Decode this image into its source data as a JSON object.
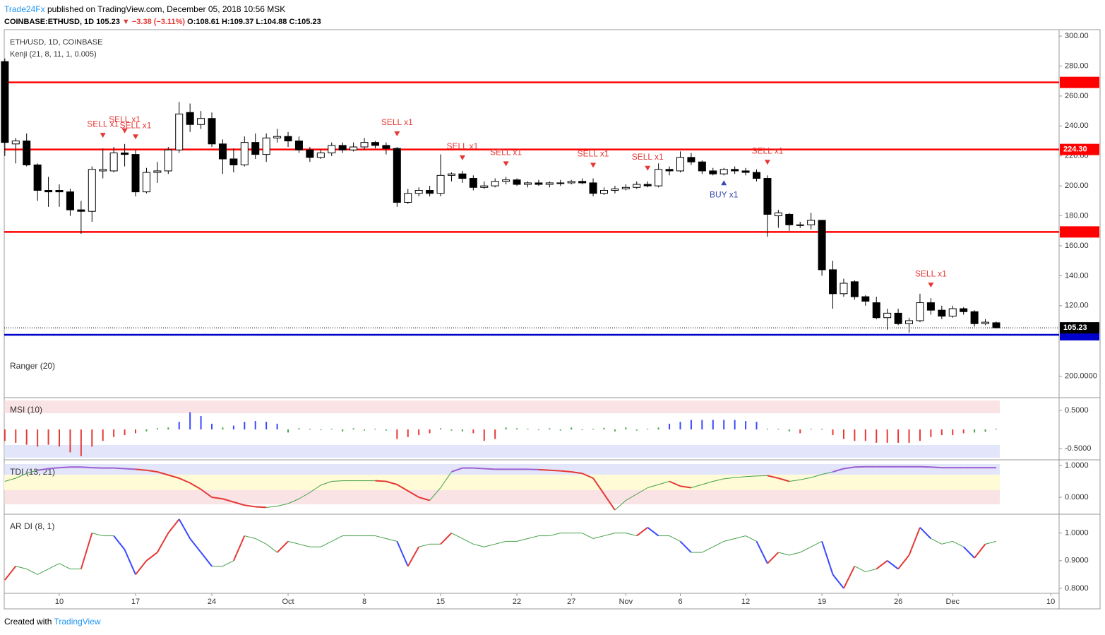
{
  "header": {
    "author": "Trade24Fx",
    "published": "published on TradingView.com, December 05, 2018 10:56 MSK",
    "symbol": "COINBASE:ETHUSD, 1D",
    "last": "105.23",
    "change": "▼ −3.38 (−3.11%)",
    "ohlc": "O:108.61 H:109.37 L:104.88 C:105.23"
  },
  "footer": {
    "created": "Created with",
    "brand": "TradingView"
  },
  "chart_data": {
    "type": "candlestick",
    "title": "ETH/USD, 1D, COINBASE",
    "subtitle": "Kenji (21, 8, 11, 1, 0.005)",
    "xlim": [
      -0.055,
      96.77
    ],
    "xticks": [
      {
        "value": 5,
        "label": "10"
      },
      {
        "value": 12,
        "label": "17"
      },
      {
        "value": 19,
        "label": "24"
      },
      {
        "value": 26,
        "label": "Oct"
      },
      {
        "value": 33,
        "label": "8"
      },
      {
        "value": 40,
        "label": "15"
      },
      {
        "value": 47,
        "label": "22"
      },
      {
        "value": 52,
        "label": "27"
      },
      {
        "value": 57,
        "label": "Nov"
      },
      {
        "value": 62,
        "label": "6"
      },
      {
        "value": 68,
        "label": "12"
      },
      {
        "value": 75,
        "label": "19"
      },
      {
        "value": 82,
        "label": "26"
      },
      {
        "value": 87,
        "label": "Dec"
      },
      {
        "value": 96,
        "label": "10"
      }
    ],
    "ylim": [
      88.3,
      304.3
    ],
    "yticks": [
      {
        "value": 120,
        "label": "120.00"
      },
      {
        "value": 140,
        "label": "140.00"
      },
      {
        "value": 160,
        "label": "160.00"
      },
      {
        "value": 180,
        "label": "180.00"
      },
      {
        "value": 200,
        "label": "200.00"
      },
      {
        "value": 220,
        "label": "220.00"
      },
      {
        "value": 240,
        "label": "240.00"
      },
      {
        "value": 260,
        "label": "260.00"
      },
      {
        "value": 280,
        "label": "280.00"
      },
      {
        "value": 300,
        "label": "300.00"
      }
    ],
    "levels": [
      {
        "value": 269.09,
        "color": "#ff0000"
      },
      {
        "value": 224.3,
        "label": "224.30",
        "color": "#ff0000"
      },
      {
        "value": 169.25,
        "color": "#ff0000"
      },
      {
        "value": 100.58,
        "color": "#0000cc"
      }
    ],
    "last_price": 105.23,
    "up_color": "#ffffff",
    "down_color": "#000000",
    "ohlc": [
      [
        283,
        285,
        220,
        229
      ],
      [
        228,
        232,
        215,
        230
      ],
      [
        230,
        235,
        213,
        214
      ],
      [
        214,
        215,
        190,
        197
      ],
      [
        197,
        206,
        186,
        196
      ],
      [
        197,
        201,
        186,
        196
      ],
      [
        196,
        198,
        180,
        184
      ],
      [
        184,
        190,
        168,
        183
      ],
      [
        183,
        213,
        176,
        211
      ],
      [
        210,
        225,
        205,
        211
      ],
      [
        210,
        226,
        209,
        222
      ],
      [
        222,
        228,
        213,
        221
      ],
      [
        221,
        224,
        193,
        196
      ],
      [
        196,
        212,
        195,
        209
      ],
      [
        209,
        216,
        202,
        210
      ],
      [
        210,
        226,
        208,
        224
      ],
      [
        224,
        256,
        222,
        248
      ],
      [
        249,
        255,
        236,
        241
      ],
      [
        241,
        250,
        238,
        245
      ],
      [
        245,
        249,
        226,
        228
      ],
      [
        228,
        231,
        208,
        218
      ],
      [
        218,
        225,
        209,
        214
      ],
      [
        214,
        233,
        213,
        229
      ],
      [
        229,
        235,
        218,
        221
      ],
      [
        221,
        235,
        216,
        232
      ],
      [
        232,
        238,
        229,
        233
      ],
      [
        233,
        236,
        226,
        230
      ],
      [
        230,
        233,
        222,
        224
      ],
      [
        224,
        226,
        216,
        219
      ],
      [
        219,
        224,
        218,
        222
      ],
      [
        222,
        229,
        220,
        227
      ],
      [
        227,
        229,
        222,
        224
      ],
      [
        224,
        229,
        223,
        226
      ],
      [
        226,
        232,
        224,
        229
      ],
      [
        229,
        230,
        225,
        227
      ],
      [
        227,
        229,
        221,
        225
      ],
      [
        225,
        226,
        186,
        189
      ],
      [
        189,
        198,
        188,
        195
      ],
      [
        195,
        199,
        193,
        197
      ],
      [
        197,
        200,
        193,
        195
      ],
      [
        195,
        221,
        193,
        207
      ],
      [
        207,
        209,
        203,
        208
      ],
      [
        208,
        210,
        202,
        205
      ],
      [
        205,
        207,
        197,
        199
      ],
      [
        199,
        203,
        198,
        200
      ],
      [
        200,
        205,
        199,
        203
      ],
      [
        203,
        206,
        201,
        204
      ],
      [
        204,
        205,
        200,
        201
      ],
      [
        201,
        203,
        199,
        202
      ],
      [
        202,
        204,
        200,
        201
      ],
      [
        201,
        203,
        199,
        202
      ],
      [
        202,
        204,
        200,
        202
      ],
      [
        202,
        204,
        201,
        203
      ],
      [
        203,
        205,
        201,
        202
      ],
      [
        202,
        205,
        193,
        195
      ],
      [
        195,
        199,
        194,
        197
      ],
      [
        197,
        200,
        195,
        198
      ],
      [
        198,
        201,
        197,
        199
      ],
      [
        199,
        203,
        198,
        201
      ],
      [
        201,
        203,
        199,
        200
      ],
      [
        200,
        215,
        199,
        211
      ],
      [
        211,
        213,
        207,
        210
      ],
      [
        210,
        223,
        209,
        219
      ],
      [
        219,
        222,
        214,
        216
      ],
      [
        216,
        217,
        208,
        210
      ],
      [
        210,
        212,
        207,
        208
      ],
      [
        208,
        212,
        207,
        211
      ],
      [
        211,
        213,
        208,
        210
      ],
      [
        210,
        212,
        207,
        209
      ],
      [
        209,
        211,
        203,
        205
      ],
      [
        205,
        207,
        166,
        181
      ],
      [
        180,
        184,
        172,
        182
      ],
      [
        181,
        182,
        170,
        174
      ],
      [
        174,
        176,
        172,
        174
      ],
      [
        174,
        182,
        171,
        177
      ],
      [
        177,
        177,
        140,
        144
      ],
      [
        144,
        150,
        118,
        128
      ],
      [
        128,
        138,
        126,
        135
      ],
      [
        136,
        137,
        124,
        126
      ],
      [
        126,
        127,
        120,
        123
      ],
      [
        122,
        126,
        111,
        112
      ],
      [
        112,
        118,
        104,
        115
      ],
      [
        115,
        118,
        107,
        108
      ],
      [
        108,
        112,
        102,
        110
      ],
      [
        110,
        128,
        109,
        122
      ],
      [
        122,
        125,
        114,
        117
      ],
      [
        117,
        120,
        111,
        113
      ],
      [
        113,
        120,
        112,
        118
      ],
      [
        118,
        119,
        114,
        116
      ],
      [
        116,
        117,
        106,
        108
      ],
      [
        108,
        111,
        107,
        109
      ],
      [
        108.61,
        109.37,
        104.88,
        105.23
      ]
    ],
    "signals": [
      {
        "label": "SELL x1",
        "index": 9,
        "side": "sell"
      },
      {
        "label": "SELL x1",
        "index": 11,
        "side": "sell"
      },
      {
        "label": "SELL x1",
        "index": 12,
        "side": "sell"
      },
      {
        "label": "SELL x1",
        "index": 36,
        "side": "sell"
      },
      {
        "label": "SELL x1",
        "index": 42,
        "side": "sell"
      },
      {
        "label": "SELL x1",
        "index": 46,
        "side": "sell"
      },
      {
        "label": "SELL x1",
        "index": 54,
        "side": "sell"
      },
      {
        "label": "SELL x1",
        "index": 59,
        "side": "sell"
      },
      {
        "label": "SELL x1",
        "index": 70,
        "side": "sell"
      },
      {
        "label": "SELL x1",
        "index": 85,
        "side": "sell"
      },
      {
        "label": "BUY x1",
        "index": 66,
        "side": "buy"
      }
    ],
    "panes": [
      {
        "name": "Ranger (20)",
        "ylim": [
          171,
          229
        ],
        "yticks": [
          {
            "value": 200,
            "label": "200.0000"
          }
        ]
      },
      {
        "name": "MSI (10)",
        "type": "bars",
        "ylim": [
          -0.778,
          0.796
        ],
        "yticks": [
          {
            "value": 0.5,
            "label": "0.5000"
          },
          {
            "value": -0.5,
            "label": "-0.5000"
          }
        ],
        "values": [
          -0.3,
          -0.35,
          -0.4,
          -0.45,
          -0.4,
          -0.45,
          -0.6,
          -0.7,
          -0.45,
          -0.3,
          -0.2,
          -0.15,
          -0.1,
          -0.05,
          0.03,
          0.05,
          0.2,
          0.45,
          0.35,
          0.15,
          0.05,
          0.1,
          0.2,
          0.22,
          0.2,
          0.15,
          -0.08,
          0.03,
          0.02,
          -0.02,
          0.02,
          -0.05,
          0.03,
          -0.03,
          0.02,
          -0.03,
          -0.25,
          -0.2,
          -0.15,
          -0.1,
          0.03,
          -0.03,
          -0.05,
          -0.1,
          -0.3,
          -0.25,
          0.05,
          0.03,
          0.02,
          -0.02,
          0.03,
          -0.03,
          0.05,
          -0.02,
          0.02,
          0.04,
          -0.05,
          0.05,
          -0.03,
          0.02,
          0.05,
          0.15,
          0.2,
          0.25,
          0.25,
          0.25,
          0.25,
          0.25,
          0.22,
          0.2,
          0.02,
          0.02,
          -0.05,
          -0.1,
          0.02,
          0.02,
          -0.15,
          -0.25,
          -0.3,
          -0.3,
          -0.35,
          -0.35,
          -0.35,
          -0.35,
          -0.3,
          -0.2,
          -0.15,
          -0.15,
          -0.1,
          -0.08,
          -0.06,
          0.02
        ]
      },
      {
        "name": "TDI (13, 21)",
        "type": "line",
        "ylim": [
          -0.511,
          1.133
        ],
        "yticks": [
          {
            "value": 1,
            "label": "1.0000"
          },
          {
            "value": 0,
            "label": "0.0000"
          }
        ],
        "values": [
          0.5,
          0.6,
          0.75,
          0.85,
          0.9,
          0.93,
          0.95,
          0.95,
          0.93,
          0.92,
          0.92,
          0.9,
          0.88,
          0.85,
          0.8,
          0.7,
          0.6,
          0.45,
          0.25,
          0.0,
          -0.05,
          -0.15,
          -0.25,
          -0.3,
          -0.32,
          -0.28,
          -0.2,
          -0.05,
          0.15,
          0.38,
          0.5,
          0.52,
          0.52,
          0.52,
          0.52,
          0.5,
          0.4,
          0.2,
          0.0,
          -0.1,
          0.3,
          0.8,
          0.92,
          0.92,
          0.9,
          0.88,
          0.88,
          0.88,
          0.88,
          0.87,
          0.85,
          0.83,
          0.8,
          0.75,
          0.6,
          0.1,
          -0.4,
          -0.1,
          0.1,
          0.3,
          0.4,
          0.5,
          0.35,
          0.3,
          0.4,
          0.5,
          0.58,
          0.62,
          0.65,
          0.67,
          0.68,
          0.6,
          0.5,
          0.55,
          0.62,
          0.72,
          0.8,
          0.9,
          0.95,
          0.96,
          0.96,
          0.96,
          0.96,
          0.96,
          0.96,
          0.95,
          0.93,
          0.93,
          0.93,
          0.93,
          0.93,
          0.93
        ]
      },
      {
        "name": "AR DI (8, 1)",
        "type": "line",
        "ylim": [
          0.787,
          1.063
        ],
        "yticks": [
          {
            "value": 1,
            "label": "1.0000"
          },
          {
            "value": 0.9,
            "label": "0.9000"
          },
          {
            "value": 0.8,
            "label": "0.8000"
          }
        ],
        "values": [
          0.83,
          0.88,
          0.87,
          0.85,
          0.87,
          0.89,
          0.87,
          0.87,
          1.0,
          0.99,
          0.99,
          0.94,
          0.85,
          0.9,
          0.93,
          1.0,
          1.05,
          0.98,
          0.93,
          0.88,
          0.88,
          0.9,
          0.99,
          0.98,
          0.96,
          0.93,
          0.97,
          0.96,
          0.95,
          0.95,
          0.97,
          0.99,
          0.99,
          0.99,
          0.99,
          0.98,
          0.97,
          0.88,
          0.95,
          0.96,
          0.96,
          1.0,
          0.98,
          0.96,
          0.95,
          0.96,
          0.97,
          0.97,
          0.98,
          0.99,
          0.99,
          1.0,
          1.0,
          1.0,
          0.98,
          0.99,
          1.0,
          1.0,
          0.99,
          1.02,
          0.99,
          0.99,
          0.97,
          0.93,
          0.93,
          0.95,
          0.97,
          0.98,
          0.99,
          0.97,
          0.89,
          0.93,
          0.92,
          0.93,
          0.95,
          0.97,
          0.85,
          0.8,
          0.88,
          0.86,
          0.87,
          0.9,
          0.87,
          0.92,
          1.02,
          0.98,
          0.96,
          0.97,
          0.95,
          0.91,
          0.96,
          0.97
        ]
      }
    ]
  }
}
